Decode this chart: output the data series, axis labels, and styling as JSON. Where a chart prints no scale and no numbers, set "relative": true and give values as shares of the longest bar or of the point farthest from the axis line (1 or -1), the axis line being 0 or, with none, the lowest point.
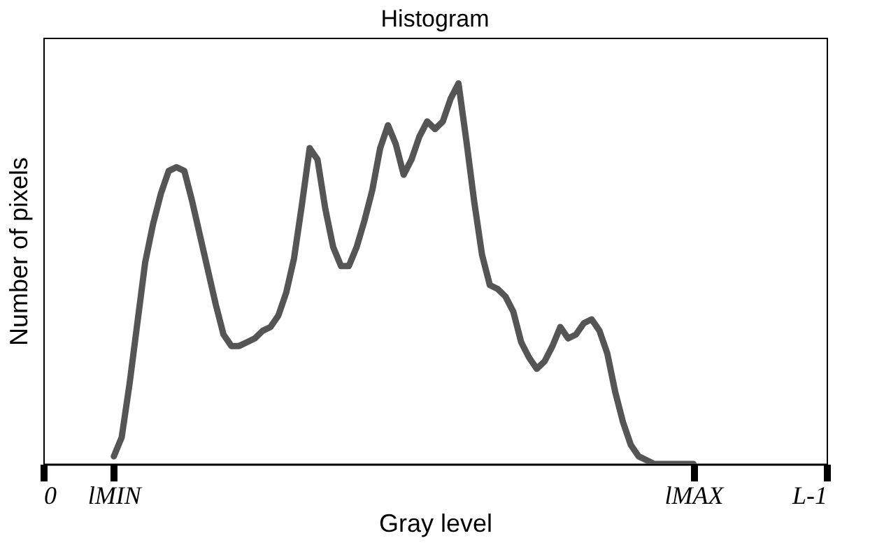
{
  "chart_data": {
    "type": "line",
    "title": "Histogram",
    "xlabel": "Gray level",
    "ylabel": "Number of pixels",
    "relative": true,
    "color": "#555555",
    "grid": false,
    "marker": "none",
    "line_style": "solid",
    "tick_labels": "x",
    "categories": [
      "0",
      null,
      null,
      null,
      null,
      null,
      null,
      null,
      null,
      "lMIN",
      null,
      null,
      null,
      null,
      null,
      null,
      null,
      null,
      null,
      null,
      null,
      null,
      null,
      null,
      null,
      null,
      null,
      null,
      null,
      null,
      null,
      null,
      null,
      null,
      null,
      null,
      null,
      null,
      null,
      null,
      null,
      null,
      null,
      null,
      null,
      null,
      null,
      null,
      null,
      null,
      null,
      null,
      null,
      null,
      null,
      null,
      null,
      null,
      null,
      null,
      null,
      null,
      null,
      null,
      null,
      null,
      null,
      null,
      null,
      null,
      null,
      null,
      null,
      null,
      null,
      null,
      null,
      null,
      null,
      null,
      null,
      null,
      null,
      "lMAX",
      null,
      null,
      null,
      null,
      null,
      null,
      null,
      null,
      null,
      null,
      null,
      null,
      null,
      null,
      null,
      null,
      "L-1"
    ],
    "values": [
      null,
      null,
      null,
      null,
      null,
      null,
      null,
      null,
      null,
      0.02,
      0.07,
      0.21,
      0.37,
      0.53,
      0.63,
      0.71,
      0.77,
      0.78,
      0.77,
      0.69,
      0.6,
      0.51,
      0.42,
      0.34,
      0.31,
      0.31,
      0.32,
      0.33,
      0.35,
      0.36,
      0.39,
      0.45,
      0.54,
      0.68,
      0.83,
      0.8,
      0.67,
      0.57,
      0.52,
      0.52,
      0.57,
      0.64,
      0.72,
      0.83,
      0.89,
      0.84,
      0.76,
      0.8,
      0.86,
      0.9,
      0.88,
      0.9,
      0.96,
      1,
      0.85,
      0.69,
      0.55,
      0.47,
      0.46,
      0.44,
      0.4,
      0.32,
      0.28,
      0.25,
      0.27,
      0.31,
      0.36,
      0.33,
      0.34,
      0.37,
      0.38,
      0.35,
      0.29,
      0.19,
      0.11,
      0.05,
      0.02,
      0.01,
      0,
      0,
      0,
      0,
      0,
      0,
      null,
      null,
      null,
      null,
      null,
      null,
      null,
      null,
      null,
      null,
      null,
      null,
      null,
      null,
      null,
      null,
      null
    ]
  }
}
